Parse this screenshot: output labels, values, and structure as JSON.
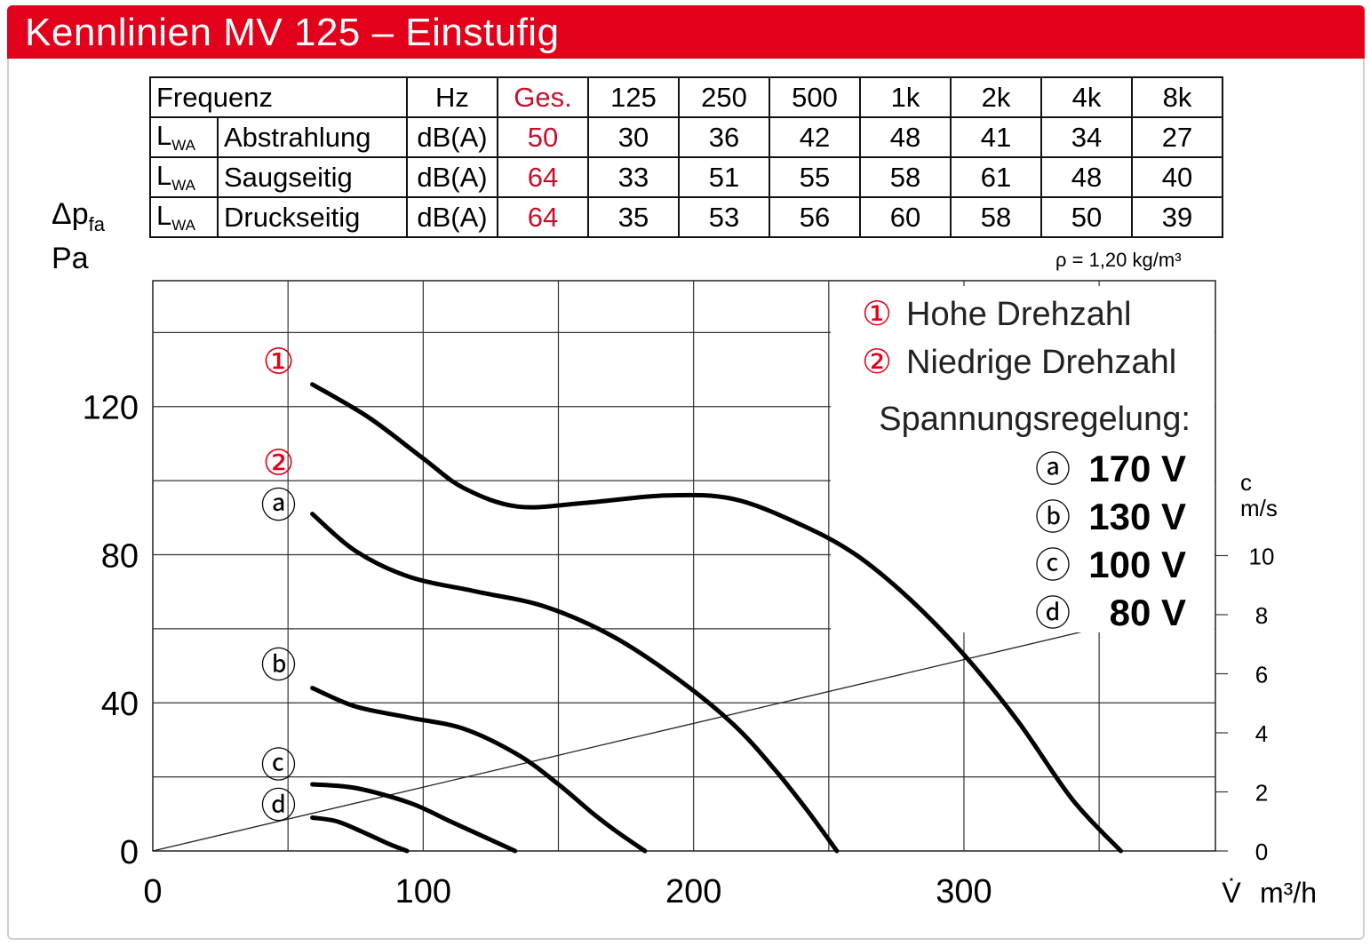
{
  "header": {
    "title": "Kennlinien MV 125 – Einstufig"
  },
  "sound_table": {
    "columns": [
      "Frequenz",
      "Hz",
      "Ges.",
      "125",
      "250",
      "500",
      "1k",
      "2k",
      "4k",
      "8k"
    ],
    "rows": [
      {
        "symbol": "L",
        "sub": "WA",
        "label": "Abstrahlung",
        "unit": "dB(A)",
        "total": "50",
        "values": [
          "30",
          "36",
          "42",
          "48",
          "41",
          "34",
          "27"
        ]
      },
      {
        "symbol": "L",
        "sub": "WA",
        "label": "Saugseitig",
        "unit": "dB(A)",
        "total": "64",
        "values": [
          "33",
          "51",
          "55",
          "58",
          "61",
          "48",
          "40"
        ]
      },
      {
        "symbol": "L",
        "sub": "WA",
        "label": "Druckseitig",
        "unit": "dB(A)",
        "total": "64",
        "values": [
          "35",
          "53",
          "56",
          "60",
          "58",
          "50",
          "39"
        ]
      }
    ]
  },
  "density_note": "ρ = 1,20 kg/m³",
  "accent_color": "#e2001a",
  "chart_data": {
    "type": "line",
    "ylabel": {
      "symbol": "Δp",
      "sub": "fa",
      "unit": "Pa"
    },
    "xlabel": {
      "symbol": "V̇",
      "unit": "m³/h"
    },
    "secondary_ylabel": {
      "symbol": "c",
      "unit": "m/s"
    },
    "x_ticks": [
      "0",
      "100",
      "200",
      "300"
    ],
    "y_ticks": [
      "0",
      "40",
      "80",
      "120"
    ],
    "secondary_y_ticks": [
      "0",
      "2",
      "4",
      "6",
      "8",
      "10"
    ],
    "xlim": [
      0,
      393
    ],
    "ylim": [
      0,
      154
    ],
    "secondary_ylim": [
      0,
      10
    ],
    "grid": true,
    "legend": {
      "speeds": [
        {
          "mark": "①",
          "label": "Hohe Drehzahl"
        },
        {
          "mark": "②",
          "label": "Niedrige Drehzahl"
        }
      ],
      "voltage_title": "Spannungsregelung:",
      "voltages": [
        {
          "mark": "ⓐ",
          "label": "170 V"
        },
        {
          "mark": "ⓑ",
          "label": "130 V"
        },
        {
          "mark": "ⓒ",
          "label": "100 V"
        },
        {
          "mark": "ⓓ",
          "label": "80 V"
        }
      ]
    },
    "series": [
      {
        "marks": [
          "①"
        ],
        "points": [
          [
            59,
            126
          ],
          [
            80,
            117
          ],
          [
            100,
            106
          ],
          [
            115,
            98
          ],
          [
            135,
            93
          ],
          [
            160,
            94
          ],
          [
            190,
            96
          ],
          [
            215,
            95
          ],
          [
            240,
            88
          ],
          [
            260,
            80
          ],
          [
            280,
            68
          ],
          [
            300,
            53
          ],
          [
            320,
            35
          ],
          [
            340,
            14
          ],
          [
            358,
            0
          ]
        ]
      },
      {
        "marks": [
          "②",
          "ⓐ"
        ],
        "points": [
          [
            59,
            91
          ],
          [
            75,
            81
          ],
          [
            95,
            74
          ],
          [
            120,
            70
          ],
          [
            145,
            66
          ],
          [
            170,
            58
          ],
          [
            195,
            46
          ],
          [
            215,
            34
          ],
          [
            230,
            22
          ],
          [
            242,
            11
          ],
          [
            253,
            0
          ]
        ]
      },
      {
        "marks": [
          "ⓑ"
        ],
        "points": [
          [
            59,
            44
          ],
          [
            75,
            39
          ],
          [
            95,
            36
          ],
          [
            115,
            33
          ],
          [
            135,
            26
          ],
          [
            150,
            18
          ],
          [
            163,
            10
          ],
          [
            172,
            5
          ],
          [
            182,
            0
          ]
        ]
      },
      {
        "marks": [
          "ⓒ"
        ],
        "points": [
          [
            59,
            18
          ],
          [
            75,
            17
          ],
          [
            95,
            13
          ],
          [
            110,
            8
          ],
          [
            122,
            4
          ],
          [
            134,
            0
          ]
        ]
      },
      {
        "marks": [
          "ⓓ"
        ],
        "points": [
          [
            59,
            9
          ],
          [
            68,
            8
          ],
          [
            78,
            5
          ],
          [
            87,
            2
          ],
          [
            94,
            0
          ]
        ]
      }
    ],
    "system_line": {
      "from": [
        0,
        0
      ],
      "to": [
        360,
        62
      ]
    }
  }
}
